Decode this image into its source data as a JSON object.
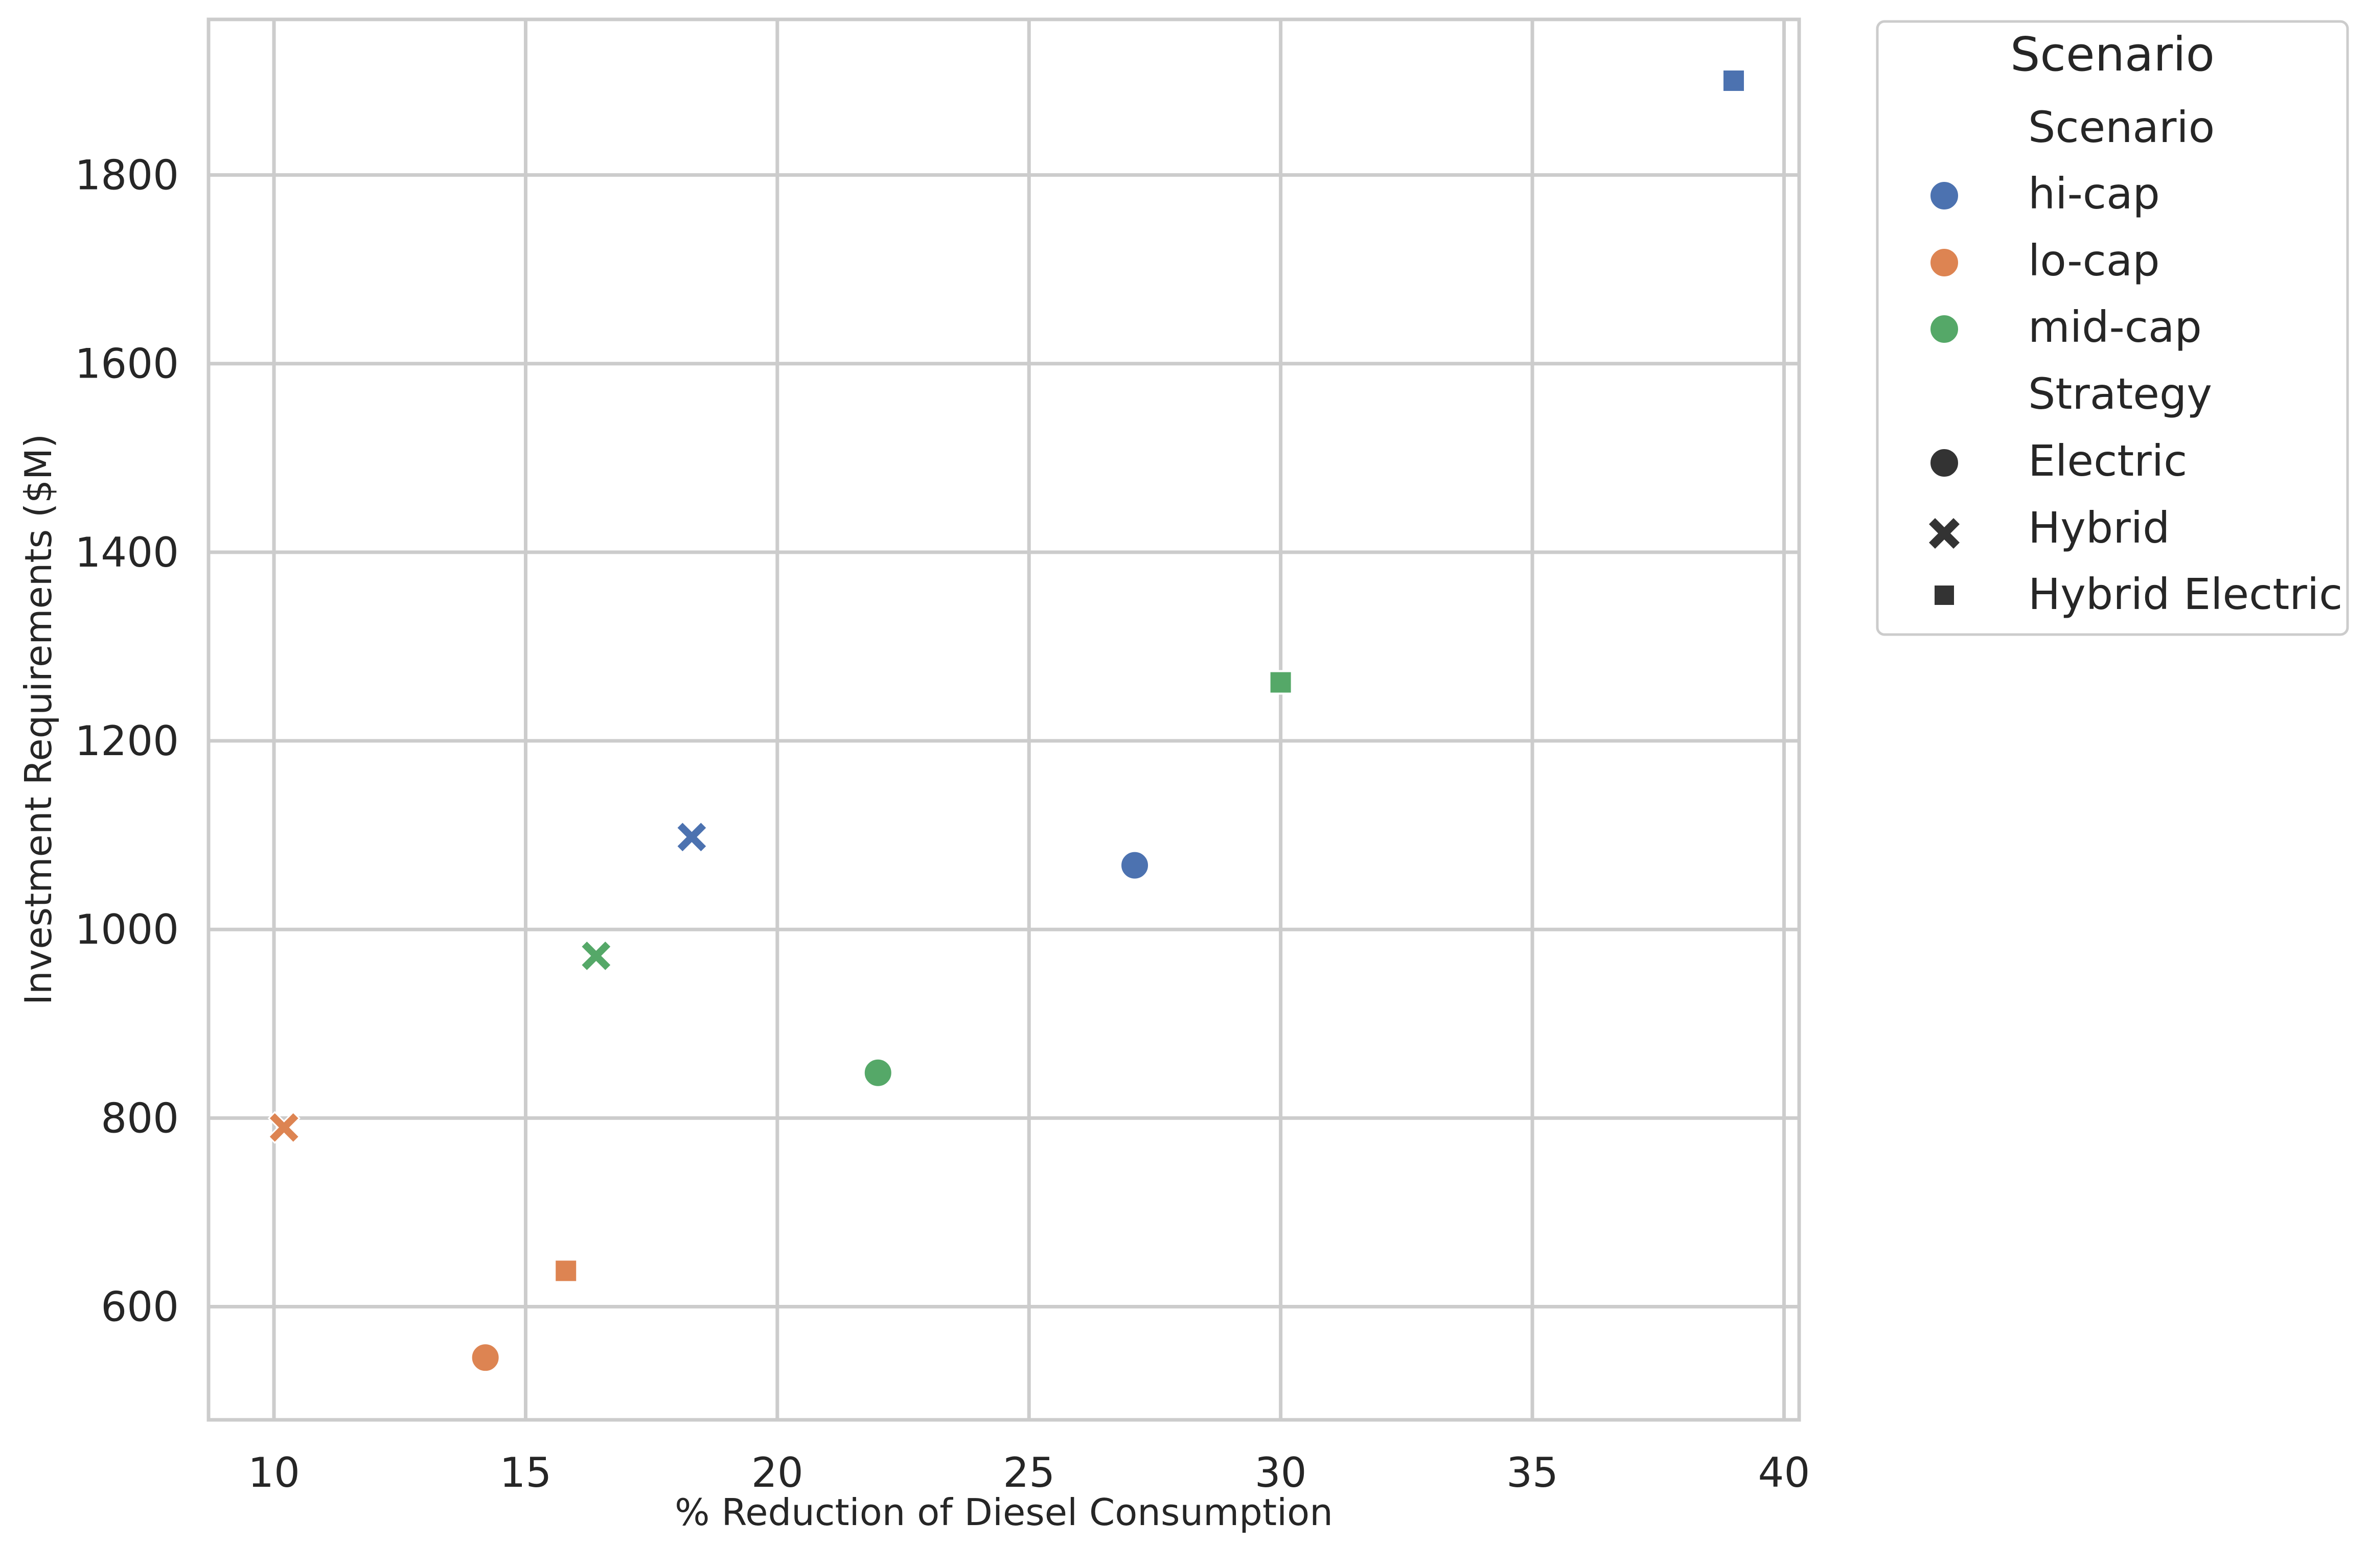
{
  "chart_data": {
    "type": "scatter",
    "title": "",
    "xlabel": "% Reduction of Diesel Consumption",
    "ylabel": "Investment Requirements ($M)",
    "xlim": [
      8.7,
      40.3
    ],
    "ylim": [
      480,
      1965
    ],
    "xticks": [
      10,
      15,
      20,
      25,
      30,
      35,
      40
    ],
    "yticks": [
      600,
      800,
      1000,
      1200,
      1400,
      1600,
      1800
    ],
    "grid": true,
    "legend_placement": "outside right, top",
    "legend": {
      "title": "Scenario",
      "hue_heading": "Scenario",
      "style_heading": "Strategy",
      "hue_entries": [
        {
          "label": "hi-cap",
          "color": "#4c72b0"
        },
        {
          "label": "lo-cap",
          "color": "#dd8452"
        },
        {
          "label": "mid-cap",
          "color": "#55a868"
        }
      ],
      "style_entries": [
        {
          "label": "Electric",
          "marker": "circle"
        },
        {
          "label": "Hybrid",
          "marker": "x"
        },
        {
          "label": "Hybrid Electric",
          "marker": "square"
        }
      ]
    },
    "points": [
      {
        "scenario": "hi-cap",
        "strategy": "Hybrid Electric",
        "x": 39.0,
        "y": 1900
      },
      {
        "scenario": "hi-cap",
        "strategy": "Hybrid",
        "x": 18.3,
        "y": 1098
      },
      {
        "scenario": "hi-cap",
        "strategy": "Electric",
        "x": 27.1,
        "y": 1068
      },
      {
        "scenario": "mid-cap",
        "strategy": "Hybrid Electric",
        "x": 30.0,
        "y": 1262
      },
      {
        "scenario": "mid-cap",
        "strategy": "Hybrid",
        "x": 16.4,
        "y": 972
      },
      {
        "scenario": "mid-cap",
        "strategy": "Electric",
        "x": 22.0,
        "y": 848
      },
      {
        "scenario": "lo-cap",
        "strategy": "Hybrid",
        "x": 10.2,
        "y": 790
      },
      {
        "scenario": "lo-cap",
        "strategy": "Hybrid Electric",
        "x": 15.8,
        "y": 638
      },
      {
        "scenario": "lo-cap",
        "strategy": "Electric",
        "x": 14.2,
        "y": 546
      }
    ]
  }
}
